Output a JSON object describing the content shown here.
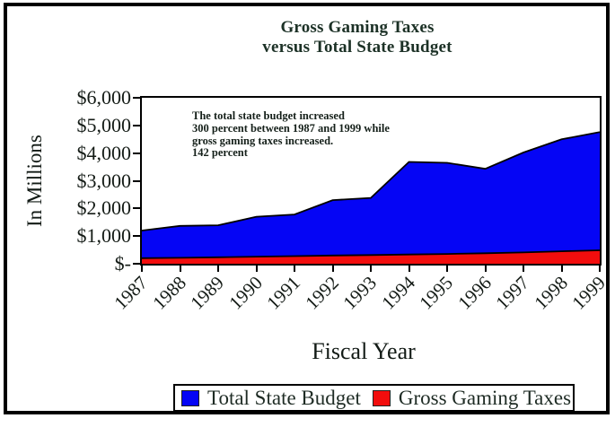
{
  "title": {
    "line1": "Gross Gaming Taxes",
    "line2": "versus Total State Budget"
  },
  "annotation": {
    "lines": [
      "The total state budget increased",
      "300 percent between 1987 and 1999 while",
      "gross gaming taxes increased.",
      "142 percent"
    ]
  },
  "axes": {
    "y_title": "In Millions",
    "x_title": "Fiscal Year"
  },
  "legend": {
    "items": [
      {
        "label": "Total State Budget",
        "color": "#0505f5"
      },
      {
        "label": "Gross Gaming Taxes",
        "color": "#f20d0d"
      }
    ]
  },
  "chart_data": {
    "type": "area",
    "overlap": true,
    "stacked": false,
    "title": "Gross Gaming Taxes versus Total State Budget",
    "xlabel": "Fiscal Year",
    "ylabel": "In Millions",
    "ylim": [
      0,
      6000
    ],
    "y_tick_step": 1000,
    "y_tick_labels": [
      "$6,000",
      "$5,000",
      "$4,000",
      "$3,000",
      "$2,000",
      "$1,000",
      "$-"
    ],
    "grid": false,
    "legend_position": "bottom",
    "categories": [
      "1987",
      "1988",
      "1989",
      "1990",
      "1991",
      "1992",
      "1993",
      "1994",
      "1995",
      "1996",
      "1997",
      "1998",
      "1999"
    ],
    "series": [
      {
        "name": "Total State Budget",
        "color": "#0505f5",
        "values": [
          1200,
          1370,
          1390,
          1700,
          1780,
          2300,
          2380,
          3680,
          3650,
          3430,
          4020,
          4500,
          4760
        ]
      },
      {
        "name": "Gross Gaming Taxes",
        "color": "#f20d0d",
        "values": [
          200,
          215,
          235,
          255,
          275,
          300,
          315,
          335,
          355,
          380,
          410,
          450,
          485
        ]
      }
    ]
  }
}
